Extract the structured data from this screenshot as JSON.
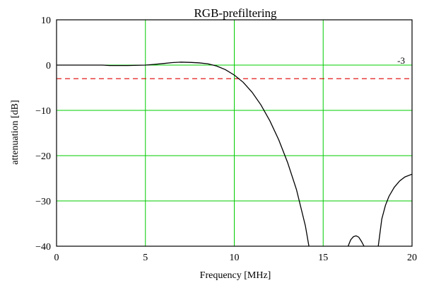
{
  "chart_data": {
    "type": "line",
    "title": "RGB-prefiltering",
    "xlabel": "Frequency [MHz]",
    "ylabel": "attenuation [dB]",
    "xlim": [
      0,
      20
    ],
    "ylim": [
      -40,
      10
    ],
    "x_ticks": [
      "0",
      "5",
      "10",
      "15",
      "20"
    ],
    "y_ticks": [
      "10",
      "0",
      "-10",
      "-20",
      "-30",
      "-40"
    ],
    "grid": true,
    "reference_line": {
      "value": -3,
      "label": "-3",
      "color": "#e00000",
      "style": "dashed"
    },
    "series": [
      {
        "color": "#000000",
        "segments": [
          {
            "x": [
              0,
              1,
              2,
              2.6,
              3,
              4,
              5,
              5.5,
              6,
              6.5,
              7,
              7.5,
              8,
              8.5,
              9,
              9.5,
              10,
              10.5,
              11,
              11.5,
              12,
              12.5,
              13,
              13.5,
              14,
              14.2
            ],
            "y": [
              0,
              0,
              0,
              0,
              -0.1,
              -0.1,
              0,
              0.15,
              0.35,
              0.55,
              0.65,
              0.6,
              0.5,
              0.3,
              -0.2,
              -1.0,
              -2.2,
              -3.8,
              -6.0,
              -8.8,
              -12.3,
              -16.5,
              -21.5,
              -27.5,
              -35.5,
              -40
            ]
          },
          {
            "x": [
              16.4,
              16.55,
              16.7,
              16.85,
              17.0,
              17.15,
              17.3
            ],
            "y": [
              -40,
              -38.6,
              -37.9,
              -37.7,
              -38.0,
              -38.9,
              -40
            ]
          },
          {
            "x": [
              18.1,
              18.3,
              18.5,
              18.7,
              19.0,
              19.3,
              19.6,
              20.0
            ],
            "y": [
              -40,
              -34.0,
              -31.0,
              -29.0,
              -27.0,
              -25.6,
              -24.7,
              -24.1
            ]
          }
        ]
      }
    ]
  }
}
